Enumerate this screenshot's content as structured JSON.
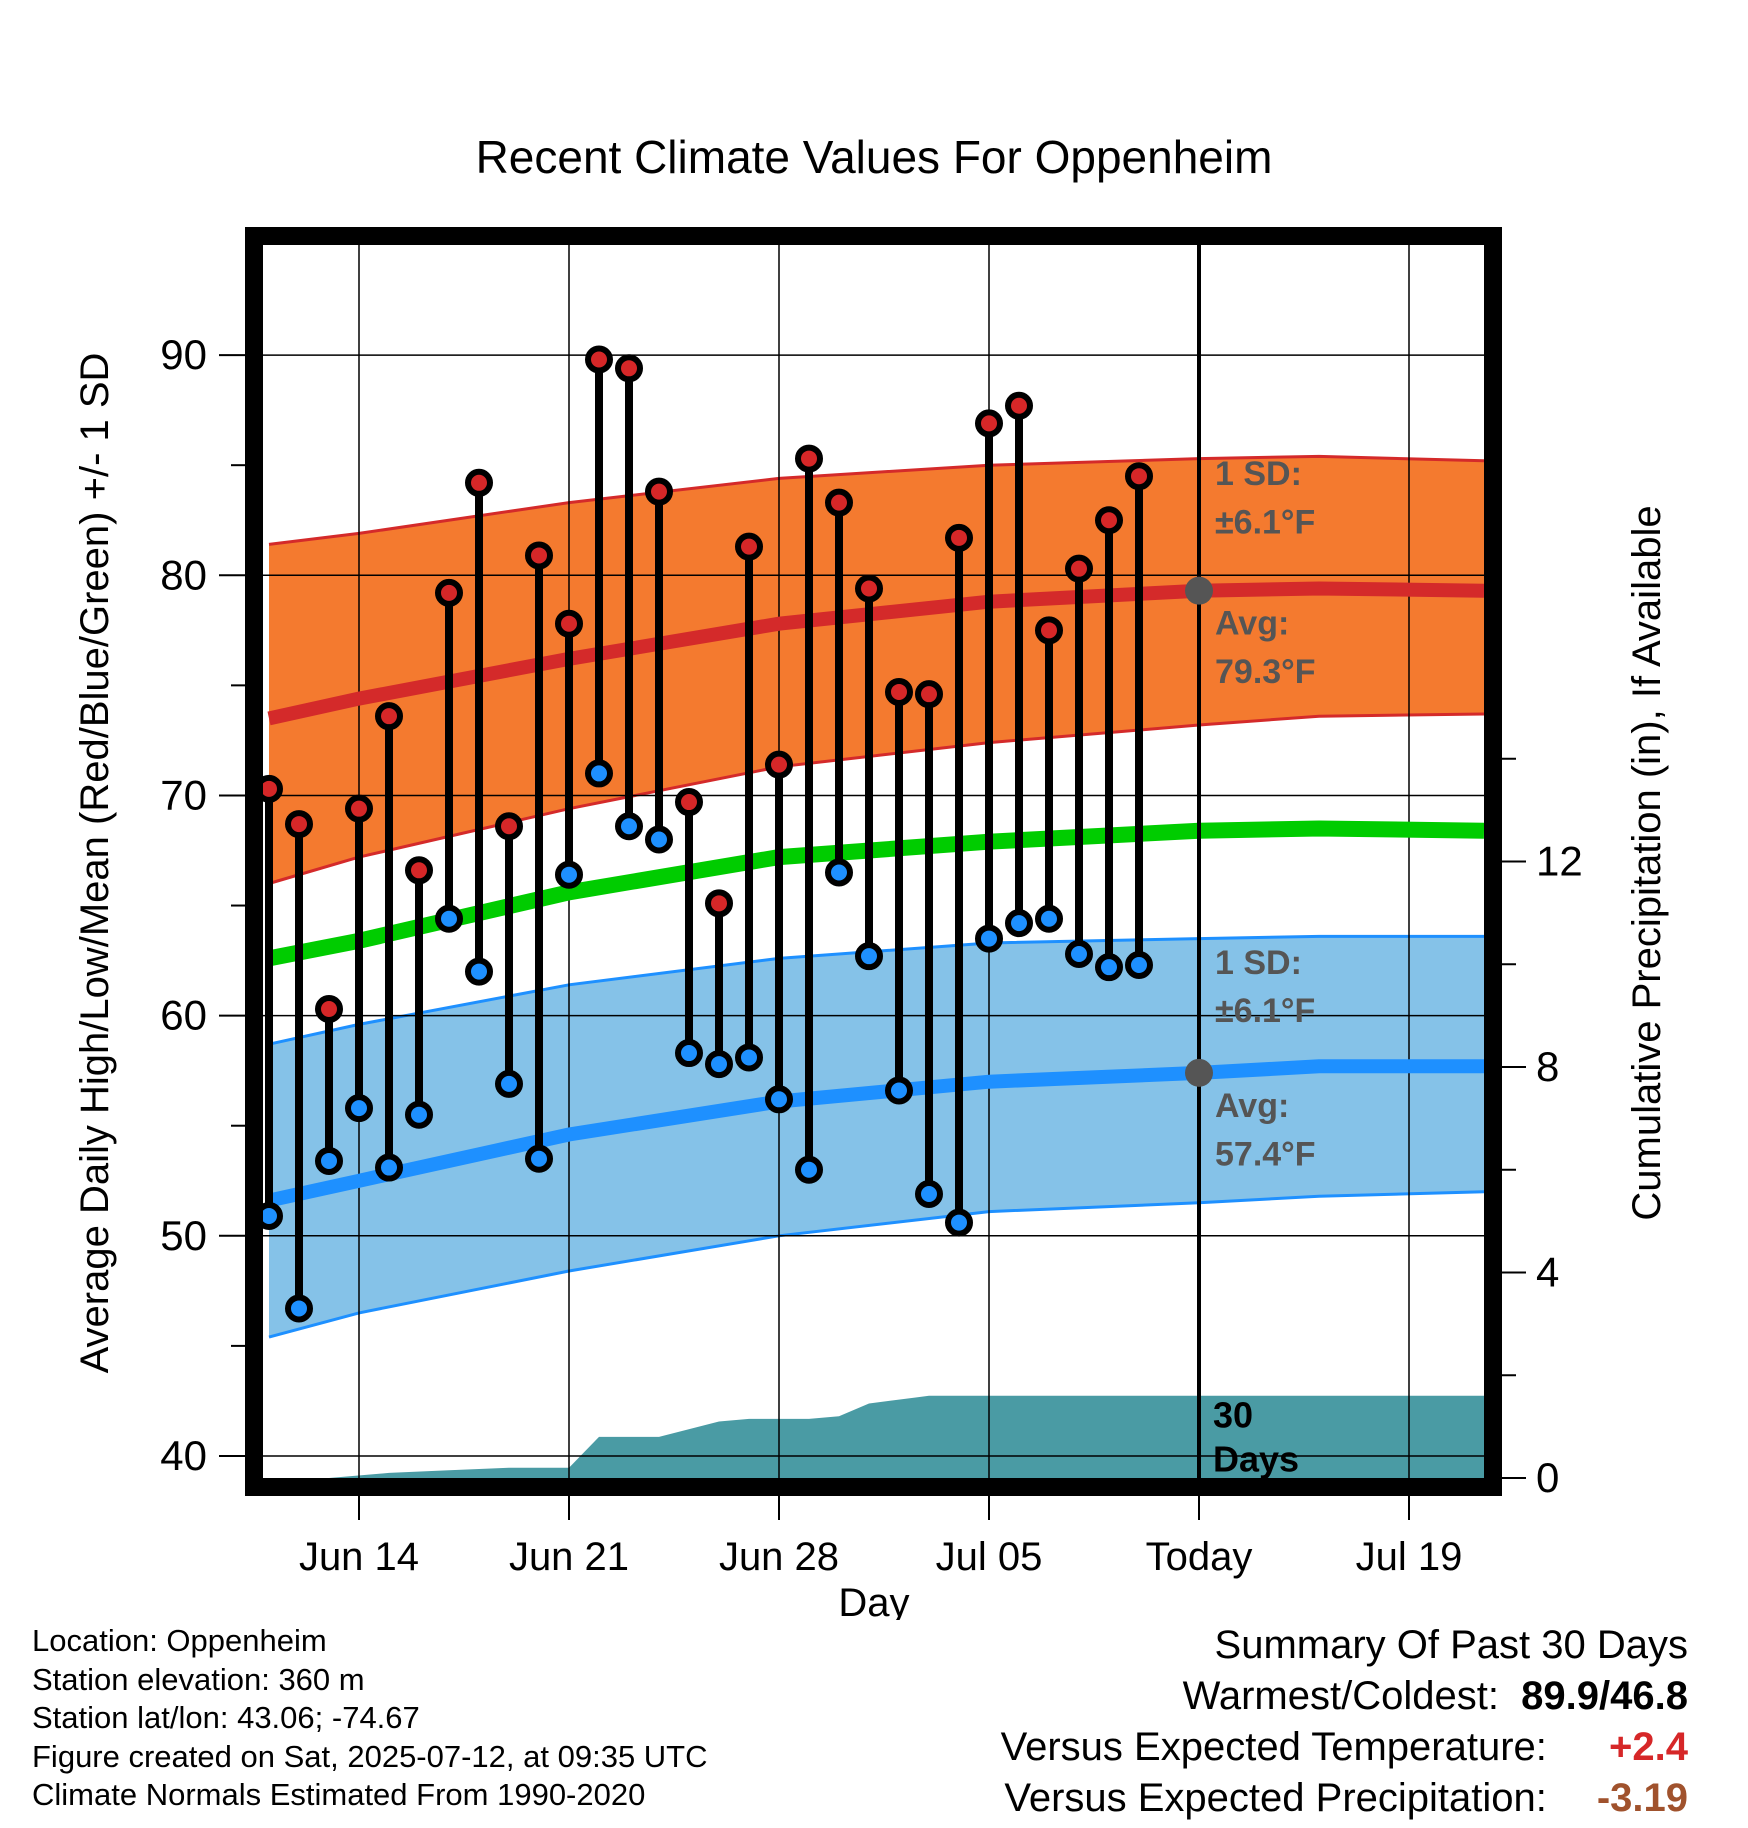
{
  "chart_data": {
    "type": "line",
    "title": "Recent Climate Values For Oppenheim",
    "xlabel": "Day",
    "ylabel": "Average Daily High/Low/Mean (Red/Blue/Green) +/- 1 SD",
    "y2label": "Cumulative Precipitation (in), If Available",
    "ylim": [
      39,
      95
    ],
    "y2lim": [
      0,
      24
    ],
    "yticks": [
      "40",
      "50",
      "60",
      "70",
      "80",
      "90"
    ],
    "y2ticks": [
      "0",
      "4",
      "8",
      "12"
    ],
    "xticks": [
      {
        "day": 14,
        "label": "Jun 14"
      },
      {
        "day": 21,
        "label": "Jun 21"
      },
      {
        "day": 28,
        "label": "Jun 28"
      },
      {
        "day": 35,
        "label": "Jul 05"
      },
      {
        "day": 42,
        "label": "Today"
      },
      {
        "day": 49,
        "label": "Jul 19"
      }
    ],
    "xlim": [
      10.8,
      51.5
    ],
    "today_day": 42,
    "grid": true,
    "high_sd_label": [
      "1 SD:",
      "±6.1°F"
    ],
    "high_avg_label": [
      "Avg:",
      "79.3°F"
    ],
    "low_sd_label": [
      "1 SD:",
      "±6.1°F"
    ],
    "low_avg_label": [
      "Avg:",
      "57.4°F"
    ],
    "days_label": [
      "30",
      "Days"
    ],
    "colors": {
      "high_band": "#f47a2f",
      "high_line": "#d42a2a",
      "mean_line": "#00cc00",
      "low_band": "#85c2e8",
      "low_line": "#1e90ff",
      "precip": "#4a9ba4",
      "high_dot": "#d62728",
      "low_dot": "#1e90ff",
      "label_grey": "#555555"
    },
    "normals": {
      "days": [
        11,
        14,
        21,
        28,
        35,
        42,
        46,
        51.5
      ],
      "high_avg": [
        73.5,
        74.4,
        76.2,
        77.8,
        78.8,
        79.3,
        79.4,
        79.3
      ],
      "mean_avg": [
        62.6,
        63.4,
        65.6,
        67.2,
        67.9,
        68.4,
        68.5,
        68.4
      ],
      "low_avg": [
        51.6,
        52.5,
        54.6,
        56.1,
        57.0,
        57.4,
        57.7,
        57.7
      ],
      "high_upper": [
        81.4,
        81.9,
        83.3,
        84.4,
        85.0,
        85.3,
        85.4,
        85.2
      ],
      "high_lower": [
        66.0,
        67.2,
        69.4,
        71.3,
        72.4,
        73.2,
        73.6,
        73.7
      ],
      "low_upper": [
        58.7,
        59.6,
        61.4,
        62.6,
        63.3,
        63.5,
        63.6,
        63.6
      ],
      "low_lower": [
        45.4,
        46.5,
        48.4,
        50.0,
        51.1,
        51.5,
        51.8,
        52.0
      ]
    },
    "series": [
      {
        "name": "High",
        "days": [
          11,
          12,
          13,
          14,
          15,
          16,
          17,
          18,
          19,
          20,
          21,
          22,
          23,
          24,
          25,
          26,
          27,
          28,
          29,
          30,
          31,
          32,
          33,
          34,
          35,
          36,
          37,
          38,
          39,
          40,
          41
        ],
        "values": [
          70.3,
          68.7,
          60.3,
          69.4,
          73.6,
          66.6,
          79.2,
          84.2,
          68.6,
          80.9,
          77.8,
          89.8,
          89.4,
          83.8,
          69.7,
          65.1,
          81.3,
          71.4,
          85.3,
          83.3,
          79.4,
          74.7,
          74.6,
          81.7,
          86.9,
          87.7,
          77.5,
          80.3,
          82.5,
          84.5,
          null
        ]
      },
      {
        "name": "Low",
        "days": [
          11,
          12,
          13,
          14,
          15,
          16,
          17,
          18,
          19,
          20,
          21,
          22,
          23,
          24,
          25,
          26,
          27,
          28,
          29,
          30,
          31,
          32,
          33,
          34,
          35,
          36,
          37,
          38,
          39,
          40,
          41
        ],
        "values": [
          50.9,
          46.7,
          53.4,
          55.8,
          53.1,
          55.5,
          64.4,
          62.0,
          56.9,
          53.5,
          66.4,
          71.0,
          68.6,
          68.0,
          58.3,
          57.8,
          58.1,
          56.2,
          53.0,
          66.5,
          62.7,
          56.6,
          51.9,
          50.6,
          63.5,
          64.2,
          64.4,
          62.8,
          62.2,
          62.3,
          null
        ]
      }
    ],
    "precip": {
      "days": [
        11,
        13,
        15,
        17,
        19,
        21,
        22,
        24,
        26,
        27,
        28,
        29,
        30,
        31,
        33,
        35,
        42,
        51.5
      ],
      "values": [
        0,
        0,
        0.1,
        0.15,
        0.2,
        0.2,
        0.8,
        0.8,
        1.1,
        1.15,
        1.15,
        1.15,
        1.2,
        1.45,
        1.6,
        1.6,
        1.6,
        1.6
      ]
    }
  },
  "footer": {
    "location": "Location: Oppenheim",
    "elevation": "Station elevation: 360 m",
    "latlon": "Station lat/lon: 43.06; -74.67",
    "created": "Figure created on Sat, 2025-07-12, at 09:35 UTC",
    "normals": "Climate Normals Estimated From 1990-2020"
  },
  "summary": {
    "title": "Summary Of Past 30 Days",
    "warmest_coldest_label": "Warmest/Coldest:",
    "warmest_coldest_value": "89.9/46.8",
    "temp_label": "Versus Expected Temperature:",
    "temp_value": "+2.4",
    "precip_label": "Versus Expected Precipitation:",
    "precip_value": "-3.19"
  }
}
